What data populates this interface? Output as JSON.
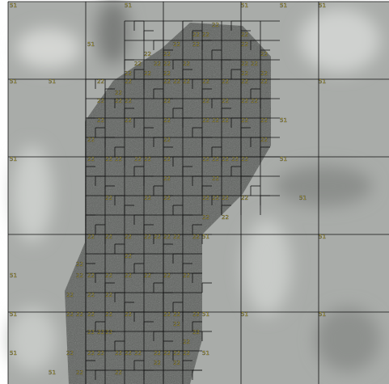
{
  "cells": [
    "51",
    "51",
    "51",
    "51",
    "51",
    "51",
    "51",
    "51",
    "51",
    "51",
    "51",
    "51",
    "51",
    "51",
    "51",
    "51",
    "51",
    "51",
    "51",
    "51",
    "51",
    "51",
    "51",
    "22",
    "22",
    "22",
    "22",
    "22",
    "22",
    "22",
    "22",
    "22",
    "22",
    "22",
    "22",
    "22",
    "22",
    "22",
    "22",
    "22",
    "22",
    "22",
    "22",
    "22",
    "22",
    "22",
    "22",
    "22",
    "22",
    "22",
    "22",
    "22",
    "22",
    "22",
    "22",
    "22",
    "22",
    "22",
    "22",
    "22",
    "22",
    "22",
    "22",
    "22",
    "22",
    "22",
    "22",
    "22",
    "22",
    "22",
    "22",
    "22",
    "22",
    "22",
    "22",
    "22",
    "22",
    "22",
    "22",
    "22",
    "22",
    "22",
    "22",
    "22",
    "22",
    "22",
    "22",
    "22",
    "22",
    "22",
    "22",
    "22",
    "22",
    "22",
    "22",
    "22",
    "22",
    "22",
    "22",
    "22",
    "22",
    "22",
    "22",
    "22",
    "22",
    "22",
    "22",
    "22",
    "22",
    "22",
    "22",
    "22",
    "22",
    "22",
    "22",
    "22",
    "22",
    "22",
    "22",
    "22",
    "22",
    "22",
    "22",
    "22",
    "22",
    "22",
    "22",
    "22",
    "22",
    "22",
    "22",
    "22",
    "22",
    "22",
    "22",
    "22",
    "22",
    "22",
    "22",
    "22",
    "22",
    "22",
    "22"
  ]
}
